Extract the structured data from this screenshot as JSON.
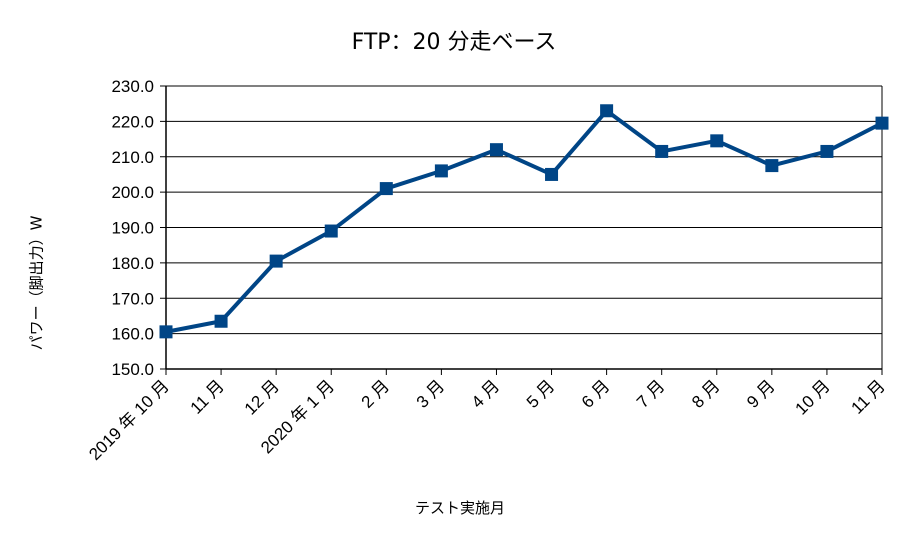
{
  "chart_data": {
    "type": "line",
    "title": "FTP：20 分走ベース",
    "xlabel": "テスト実施月",
    "ylabel": "パワー（脚出力）W",
    "categories": [
      "2019 年 10 月",
      "11 月",
      "12 月",
      "2020 年 1 月",
      "2 月",
      "3 月",
      "4 月",
      "5 月",
      "6 月",
      "7 月",
      "8 月",
      "9 月",
      "10 月",
      "11 月"
    ],
    "values": [
      160.5,
      163.5,
      180.5,
      189.0,
      201.0,
      206.0,
      212.0,
      205.0,
      223.0,
      211.5,
      214.5,
      207.5,
      211.5,
      219.5
    ],
    "ylim": [
      150.0,
      230.0
    ],
    "yticks": [
      "150.0",
      "160.0",
      "170.0",
      "180.0",
      "190.0",
      "200.0",
      "210.0",
      "220.0",
      "230.0"
    ],
    "grid": true,
    "legend": "none",
    "series_color": "#004586"
  }
}
